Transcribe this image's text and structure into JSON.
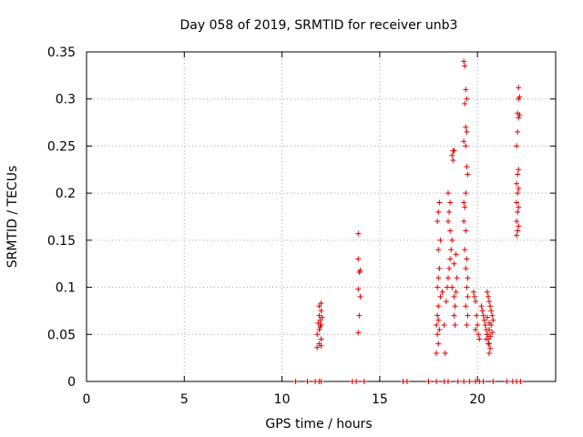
{
  "chart_data": {
    "type": "scatter",
    "title": "Day 058 of 2019, SRMTID for receiver unb3",
    "xlabel": "GPS time / hours",
    "ylabel": "SRMTID / TECUs",
    "xlim": [
      0,
      24
    ],
    "ylim": [
      0,
      0.35
    ],
    "xticks": [
      0,
      5,
      10,
      15,
      20
    ],
    "yticks": [
      0,
      0.05,
      0.1,
      0.15,
      0.2,
      0.25,
      0.3,
      0.35
    ],
    "xtick_labels": [
      "0",
      "5",
      "10",
      "15",
      "20"
    ],
    "ytick_labels": [
      "0",
      "0.05",
      "0.1",
      "0.15",
      "0.2",
      "0.25",
      "0.3",
      "0.35"
    ],
    "grid": true,
    "marker": "plus",
    "color": "#dd0000",
    "points": [
      [
        10.7,
        0.0
      ],
      [
        11.3,
        0.0
      ],
      [
        11.7,
        0.0
      ],
      [
        11.9,
        0.0
      ],
      [
        12.0,
        0.0
      ],
      [
        13.6,
        0.0
      ],
      [
        13.8,
        0.0
      ],
      [
        14.2,
        0.0
      ],
      [
        16.2,
        0.0
      ],
      [
        16.4,
        0.0
      ],
      [
        17.5,
        0.0
      ],
      [
        17.9,
        0.0
      ],
      [
        18.3,
        0.0
      ],
      [
        18.5,
        0.0
      ],
      [
        19.0,
        0.0
      ],
      [
        19.3,
        0.0
      ],
      [
        19.6,
        0.0
      ],
      [
        19.9,
        0.0
      ],
      [
        20.1,
        0.0
      ],
      [
        20.3,
        0.0
      ],
      [
        20.8,
        0.0
      ],
      [
        21.5,
        0.0
      ],
      [
        21.8,
        0.0
      ],
      [
        22.0,
        0.0
      ],
      [
        22.2,
        0.0
      ],
      [
        11.8,
        0.036
      ],
      [
        11.9,
        0.04
      ],
      [
        12.0,
        0.045
      ],
      [
        11.8,
        0.05
      ],
      [
        11.9,
        0.055
      ],
      [
        12.0,
        0.06
      ],
      [
        11.85,
        0.062
      ],
      [
        11.95,
        0.065
      ],
      [
        12.05,
        0.068
      ],
      [
        11.9,
        0.07
      ],
      [
        12.0,
        0.075
      ],
      [
        11.9,
        0.08
      ],
      [
        12.0,
        0.083
      ],
      [
        11.95,
        0.058
      ],
      [
        12.0,
        0.038
      ],
      [
        13.9,
        0.052
      ],
      [
        13.95,
        0.07
      ],
      [
        14.0,
        0.09
      ],
      [
        13.9,
        0.098
      ],
      [
        13.95,
        0.116
      ],
      [
        14.0,
        0.118
      ],
      [
        13.9,
        0.13
      ],
      [
        13.9,
        0.157
      ],
      [
        17.9,
        0.03
      ],
      [
        18.0,
        0.04
      ],
      [
        17.95,
        0.05
      ],
      [
        18.05,
        0.055
      ],
      [
        17.9,
        0.06
      ],
      [
        18.0,
        0.065
      ],
      [
        17.95,
        0.07
      ],
      [
        18.0,
        0.08
      ],
      [
        18.1,
        0.09
      ],
      [
        17.95,
        0.1
      ],
      [
        18.0,
        0.11
      ],
      [
        18.05,
        0.12
      ],
      [
        18.0,
        0.14
      ],
      [
        18.1,
        0.15
      ],
      [
        17.95,
        0.17
      ],
      [
        18.0,
        0.18
      ],
      [
        18.05,
        0.19
      ],
      [
        18.2,
        0.095
      ],
      [
        18.3,
        0.06
      ],
      [
        18.35,
        0.03
      ],
      [
        18.4,
        0.085
      ],
      [
        18.45,
        0.1
      ],
      [
        18.5,
        0.11
      ],
      [
        18.55,
        0.12
      ],
      [
        18.6,
        0.13
      ],
      [
        18.65,
        0.14
      ],
      [
        18.7,
        0.15
      ],
      [
        18.6,
        0.16
      ],
      [
        18.5,
        0.17
      ],
      [
        18.55,
        0.18
      ],
      [
        18.6,
        0.19
      ],
      [
        18.5,
        0.2
      ],
      [
        18.7,
        0.24
      ],
      [
        18.75,
        0.245
      ],
      [
        18.8,
        0.245
      ],
      [
        18.75,
        0.235
      ],
      [
        18.7,
        0.1
      ],
      [
        18.8,
        0.09
      ],
      [
        18.85,
        0.08
      ],
      [
        18.8,
        0.07
      ],
      [
        18.85,
        0.06
      ],
      [
        18.9,
        0.095
      ],
      [
        18.95,
        0.11
      ],
      [
        18.8,
        0.125
      ],
      [
        18.9,
        0.135
      ],
      [
        19.3,
        0.19
      ],
      [
        19.35,
        0.185
      ],
      [
        19.4,
        0.2
      ],
      [
        19.3,
        0.17
      ],
      [
        19.4,
        0.16
      ],
      [
        19.35,
        0.14
      ],
      [
        19.45,
        0.13
      ],
      [
        19.4,
        0.12
      ],
      [
        19.5,
        0.11
      ],
      [
        19.45,
        0.1
      ],
      [
        19.5,
        0.09
      ],
      [
        19.4,
        0.08
      ],
      [
        19.5,
        0.07
      ],
      [
        19.45,
        0.06
      ],
      [
        19.3,
        0.34
      ],
      [
        19.35,
        0.335
      ],
      [
        19.4,
        0.31
      ],
      [
        19.45,
        0.3
      ],
      [
        19.35,
        0.295
      ],
      [
        19.4,
        0.27
      ],
      [
        19.45,
        0.265
      ],
      [
        19.3,
        0.255
      ],
      [
        19.4,
        0.25
      ],
      [
        19.45,
        0.228
      ],
      [
        19.5,
        0.22
      ],
      [
        19.8,
        0.095
      ],
      [
        19.85,
        0.09
      ],
      [
        19.9,
        0.085
      ],
      [
        19.95,
        0.07
      ],
      [
        20.0,
        0.06
      ],
      [
        19.9,
        0.055
      ],
      [
        20.05,
        0.05
      ],
      [
        20.1,
        0.045
      ],
      [
        20.2,
        0.08
      ],
      [
        20.25,
        0.075
      ],
      [
        20.3,
        0.07
      ],
      [
        20.35,
        0.065
      ],
      [
        20.4,
        0.06
      ],
      [
        20.45,
        0.055
      ],
      [
        20.5,
        0.05
      ],
      [
        20.55,
        0.045
      ],
      [
        20.6,
        0.04
      ],
      [
        20.65,
        0.035
      ],
      [
        20.6,
        0.03
      ],
      [
        20.5,
        0.095
      ],
      [
        20.55,
        0.09
      ],
      [
        20.6,
        0.085
      ],
      [
        20.65,
        0.08
      ],
      [
        20.7,
        0.075
      ],
      [
        20.75,
        0.07
      ],
      [
        20.8,
        0.065
      ],
      [
        20.7,
        0.06
      ],
      [
        20.6,
        0.055
      ],
      [
        20.5,
        0.05
      ],
      [
        20.45,
        0.045
      ],
      [
        20.55,
        0.04
      ],
      [
        20.65,
        0.048
      ],
      [
        20.75,
        0.052
      ],
      [
        20.6,
        0.062
      ],
      [
        20.5,
        0.068
      ],
      [
        22.0,
        0.155
      ],
      [
        22.05,
        0.16
      ],
      [
        22.1,
        0.165
      ],
      [
        22.0,
        0.17
      ],
      [
        22.05,
        0.18
      ],
      [
        22.1,
        0.185
      ],
      [
        22.0,
        0.19
      ],
      [
        22.05,
        0.2
      ],
      [
        22.1,
        0.205
      ],
      [
        22.0,
        0.21
      ],
      [
        22.05,
        0.22
      ],
      [
        22.1,
        0.225
      ],
      [
        22.0,
        0.25
      ],
      [
        22.05,
        0.265
      ],
      [
        22.1,
        0.28
      ],
      [
        22.05,
        0.285
      ],
      [
        22.15,
        0.283
      ],
      [
        22.1,
        0.3
      ],
      [
        22.15,
        0.302
      ],
      [
        22.1,
        0.312
      ]
    ]
  }
}
